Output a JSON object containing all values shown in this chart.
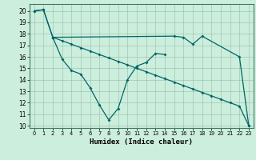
{
  "xlabel": "Humidex (Indice chaleur)",
  "background_color": "#cceedd",
  "line_color": "#006666",
  "xlim": [
    -0.5,
    23.5
  ],
  "ylim": [
    9.8,
    20.6
  ],
  "yticks": [
    10,
    11,
    12,
    13,
    14,
    15,
    16,
    17,
    18,
    19,
    20
  ],
  "xticks": [
    0,
    1,
    2,
    3,
    4,
    5,
    6,
    7,
    8,
    9,
    10,
    11,
    12,
    13,
    14,
    15,
    16,
    17,
    18,
    19,
    20,
    21,
    22,
    23
  ],
  "series": [
    {
      "x": [
        0,
        1,
        2
      ],
      "y": [
        20,
        20.1,
        17.7
      ]
    },
    {
      "x": [
        2,
        3,
        4,
        5,
        6,
        7,
        8,
        9,
        10,
        11,
        12,
        13,
        14
      ],
      "y": [
        17.7,
        15.8,
        14.8,
        14.5,
        13.3,
        11.8,
        10.5,
        11.5,
        14.0,
        15.2,
        15.5,
        16.3,
        16.2
      ]
    },
    {
      "x": [
        2,
        15,
        16,
        17,
        18,
        22,
        23
      ],
      "y": [
        17.7,
        17.8,
        17.7,
        17.1,
        17.8,
        16.0,
        10.0
      ]
    },
    {
      "x": [
        0,
        1,
        2,
        3,
        4,
        5,
        6,
        7,
        8,
        9,
        10,
        11,
        12,
        13,
        14,
        15,
        16,
        17,
        18,
        19,
        20,
        21,
        22,
        23
      ],
      "y": [
        20.0,
        20.1,
        17.7,
        17.4,
        17.1,
        16.8,
        16.5,
        16.2,
        15.9,
        15.6,
        15.3,
        15.0,
        14.7,
        14.4,
        14.1,
        13.8,
        13.5,
        13.2,
        12.9,
        12.6,
        12.3,
        12.0,
        11.7,
        10.0
      ]
    }
  ]
}
